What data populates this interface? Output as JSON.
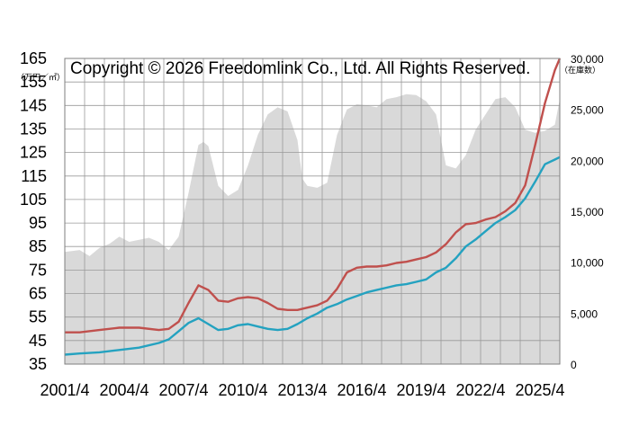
{
  "chart_data": {
    "type": "line",
    "copyright": "Copyright © 2026 Freedomlink Co., Ltd. All Rights Reserved.",
    "left_unit": "（万円／㎡）",
    "right_unit": "（在庫数）",
    "x_tick_labels": [
      "2001/4",
      "2004/4",
      "2007/4",
      "2010/4",
      "2013/4",
      "2016/4",
      "2019/4",
      "2022/4",
      "2025/4"
    ],
    "x_ticks": [
      2001.25,
      2004.25,
      2007.25,
      2010.25,
      2013.25,
      2016.25,
      2019.25,
      2022.25,
      2025.25
    ],
    "x_range": [
      2001.25,
      2026.25
    ],
    "ylim_left": [
      35,
      165
    ],
    "yticks_left": [
      35,
      45,
      55,
      65,
      75,
      85,
      95,
      105,
      115,
      125,
      135,
      145,
      155,
      165
    ],
    "ylim_right": [
      0,
      30000
    ],
    "yticks_right": [
      0,
      5000,
      10000,
      15000,
      20000,
      25000,
      30000
    ],
    "yticks_right_labels": [
      "0",
      "5,000",
      "10,000",
      "15,000",
      "20,000",
      "25,000",
      "30,000"
    ],
    "grid": true,
    "colors": {
      "inventory": "#d9d9d9",
      "red_line": "#c0504d",
      "teal_line": "#24a2c0",
      "grid": "#999999"
    },
    "series": [
      {
        "id": "inventory",
        "axis": "right",
        "style": "area",
        "x": [
          2001.25,
          2002.0,
          2002.5,
          2003.0,
          2003.5,
          2004.0,
          2004.5,
          2005.0,
          2005.5,
          2006.0,
          2006.5,
          2007.0,
          2007.5,
          2008.0,
          2008.25,
          2008.5,
          2009.0,
          2009.5,
          2010.0,
          2010.5,
          2011.0,
          2011.5,
          2012.0,
          2012.5,
          2013.0,
          2013.25,
          2013.5,
          2014.0,
          2014.5,
          2015.0,
          2015.5,
          2016.0,
          2016.5,
          2017.0,
          2017.5,
          2018.0,
          2018.5,
          2019.0,
          2019.5,
          2020.0,
          2020.5,
          2021.0,
          2021.5,
          2022.0,
          2022.5,
          2023.0,
          2023.5,
          2024.0,
          2024.5,
          2025.0,
          2025.5,
          2026.0,
          2026.25
        ],
        "values": [
          11000,
          11200,
          10600,
          11400,
          11800,
          12500,
          12000,
          12200,
          12400,
          12000,
          11200,
          12500,
          16800,
          21500,
          21800,
          21400,
          17500,
          16500,
          17100,
          19500,
          22500,
          24500,
          25200,
          24800,
          22000,
          18200,
          17500,
          17300,
          17800,
          22500,
          25000,
          25500,
          25400,
          25200,
          26000,
          26200,
          26500,
          26400,
          25800,
          24500,
          19500,
          19200,
          20500,
          23000,
          24500,
          26000,
          26200,
          25200,
          23000,
          22700,
          22900,
          23500,
          26000
        ]
      },
      {
        "id": "red_line",
        "axis": "left",
        "style": "line",
        "x": [
          2001.25,
          2002.0,
          2003.0,
          2004.0,
          2005.0,
          2006.0,
          2006.5,
          2007.0,
          2007.5,
          2008.0,
          2008.5,
          2009.0,
          2009.5,
          2010.0,
          2010.5,
          2011.0,
          2011.5,
          2012.0,
          2012.5,
          2013.0,
          2013.5,
          2014.0,
          2014.5,
          2015.0,
          2015.5,
          2016.0,
          2016.5,
          2017.0,
          2017.5,
          2018.0,
          2018.5,
          2019.0,
          2019.5,
          2020.0,
          2020.5,
          2021.0,
          2021.5,
          2022.0,
          2022.5,
          2023.0,
          2023.5,
          2024.0,
          2024.5,
          2025.0,
          2025.5,
          2026.0,
          2026.25
        ],
        "values": [
          48.5,
          48.5,
          49.5,
          50.5,
          50.5,
          49.5,
          50.0,
          53.0,
          61.0,
          68.5,
          66.5,
          62.0,
          61.5,
          63.0,
          63.5,
          63.0,
          61.0,
          58.5,
          58.0,
          58.0,
          59.0,
          60.0,
          62.0,
          67.0,
          74.0,
          76.0,
          76.5,
          76.5,
          77.0,
          78.0,
          78.5,
          79.5,
          80.5,
          82.5,
          86.0,
          91.0,
          94.5,
          95.0,
          96.5,
          97.5,
          100.0,
          103.5,
          111.0,
          128.0,
          146.0,
          160.0,
          167.0
        ]
      },
      {
        "id": "teal_line",
        "axis": "left",
        "style": "line",
        "x": [
          2001.25,
          2002.0,
          2003.0,
          2004.0,
          2005.0,
          2006.0,
          2006.5,
          2007.0,
          2007.5,
          2008.0,
          2008.5,
          2009.0,
          2009.5,
          2010.0,
          2010.5,
          2011.0,
          2011.5,
          2012.0,
          2012.5,
          2013.0,
          2013.5,
          2014.0,
          2014.5,
          2015.0,
          2015.5,
          2016.0,
          2016.5,
          2017.0,
          2017.5,
          2018.0,
          2018.5,
          2019.0,
          2019.5,
          2020.0,
          2020.5,
          2021.0,
          2021.5,
          2022.0,
          2022.5,
          2023.0,
          2023.5,
          2024.0,
          2024.5,
          2025.0,
          2025.5,
          2026.0,
          2026.25
        ],
        "values": [
          39.0,
          39.5,
          40.0,
          41.0,
          42.0,
          44.0,
          45.5,
          49.0,
          52.5,
          54.5,
          52.0,
          49.5,
          50.0,
          51.5,
          52.0,
          51.0,
          50.0,
          49.5,
          50.0,
          52.0,
          54.5,
          56.5,
          59.0,
          60.5,
          62.5,
          64.0,
          65.5,
          66.5,
          67.5,
          68.5,
          69.0,
          70.0,
          71.0,
          74.0,
          76.0,
          80.0,
          85.0,
          88.0,
          91.5,
          95.0,
          97.5,
          100.5,
          105.5,
          112.5,
          120.0,
          122.0,
          123.0
        ]
      }
    ]
  }
}
